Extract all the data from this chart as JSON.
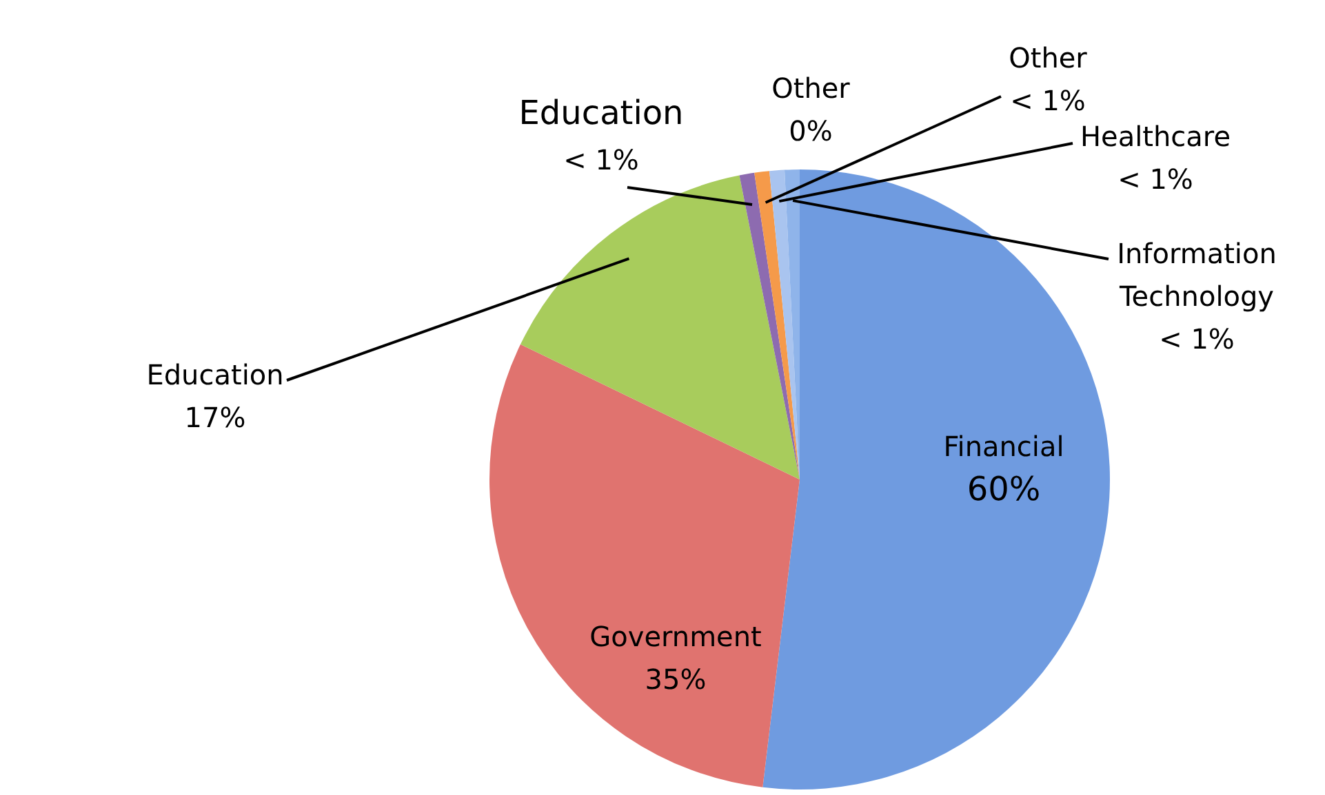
{
  "chart_data": {
    "type": "pie",
    "categories": [
      "Financial",
      "Government",
      "Education",
      "Education",
      "Other",
      "Other",
      "Healthcare",
      "Information Technology"
    ],
    "values": [
      60,
      35,
      17,
      0.9,
      0,
      0.9,
      0.9,
      0.9
    ],
    "value_labels": [
      "60%",
      "35%",
      "17%",
      "< 1%",
      "0%",
      "< 1%",
      "< 1%",
      "< 1%"
    ],
    "colors": [
      "#6f9be0",
      "#e0736f",
      "#a8cc5c",
      "#8d6bb0",
      "#5bc8ef",
      "#f59a4a",
      "#a9c4ef",
      "#8fb4ea"
    ],
    "legend": false
  }
}
